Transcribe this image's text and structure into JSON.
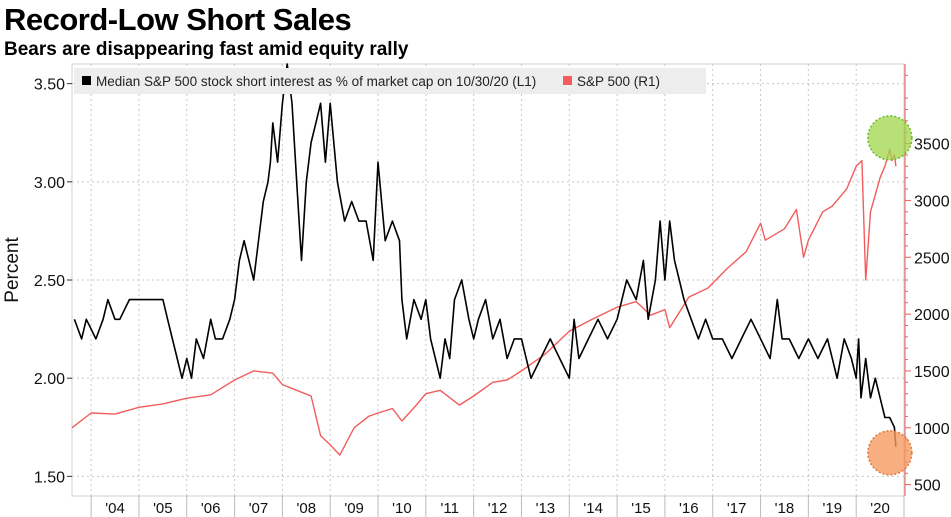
{
  "title": "Record-Low Short Sales",
  "subtitle": "Bears are disappearing fast amid equity rally",
  "colors": {
    "short_interest": "#000000",
    "sp500": "#f25c5c",
    "highlight_high": "#9fd64a",
    "highlight_low": "#f59a62",
    "grid": "#c8c8c8"
  },
  "chart_data": {
    "type": "line",
    "ylabel": "Percent",
    "grid": true,
    "legend_position": "top-left",
    "y_left_lim": [
      1.4,
      3.6
    ],
    "y_left_ticks": [
      1.5,
      2.0,
      2.5,
      3.0,
      3.5
    ],
    "y_left_tick_labels": [
      "1.50",
      "2.00",
      "2.50",
      "3.00",
      "3.50"
    ],
    "y_right_lim": [
      400,
      4200
    ],
    "y_right_ticks": [
      500,
      1000,
      1500,
      2000,
      2500,
      3000,
      3500
    ],
    "y_right_tick_labels": [
      "500",
      "1000",
      "1500",
      "2000",
      "2500",
      "3000",
      "3500"
    ],
    "x_lim": [
      2003.6,
      2021.0
    ],
    "x_ticks": [
      2004,
      2005,
      2006,
      2007,
      2008,
      2009,
      2010,
      2011,
      2012,
      2013,
      2014,
      2015,
      2016,
      2017,
      2018,
      2019,
      2020
    ],
    "x_tick_labels": [
      "'04",
      "'05",
      "'06",
      "'07",
      "'08",
      "'09",
      "'10",
      "'11",
      "'12",
      "'13",
      "'14",
      "'15",
      "'16",
      "'17",
      "'18",
      "'19",
      "'20"
    ],
    "series": [
      {
        "name": "Median S&P 500 stock short interest as % of market cap on 10/30/20 (L1)",
        "axis": "left",
        "x": [
          2003.65,
          2003.8,
          2003.9,
          2004.1,
          2004.25,
          2004.35,
          2004.5,
          2004.6,
          2004.8,
          2005.0,
          2005.2,
          2005.5,
          2005.6,
          2005.8,
          2005.9,
          2006.0,
          2006.1,
          2006.2,
          2006.35,
          2006.5,
          2006.6,
          2006.75,
          2006.9,
          2007.0,
          2007.1,
          2007.2,
          2007.3,
          2007.4,
          2007.5,
          2007.6,
          2007.7,
          2007.75,
          2007.8,
          2007.9,
          2008.0,
          2008.1,
          2008.2,
          2008.3,
          2008.4,
          2008.5,
          2008.6,
          2008.7,
          2008.8,
          2008.9,
          2009.0,
          2009.15,
          2009.3,
          2009.45,
          2009.6,
          2009.75,
          2009.9,
          2010.0,
          2010.15,
          2010.3,
          2010.45,
          2010.5,
          2010.6,
          2010.75,
          2010.9,
          2011.0,
          2011.1,
          2011.2,
          2011.3,
          2011.4,
          2011.5,
          2011.6,
          2011.75,
          2011.9,
          2012.0,
          2012.1,
          2012.25,
          2012.4,
          2012.55,
          2012.7,
          2012.85,
          2013.0,
          2013.2,
          2013.4,
          2013.6,
          2013.8,
          2014.0,
          2014.1,
          2014.2,
          2014.4,
          2014.6,
          2014.8,
          2015.0,
          2015.2,
          2015.4,
          2015.55,
          2015.65,
          2015.8,
          2015.9,
          2016.0,
          2016.1,
          2016.2,
          2016.3,
          2016.4,
          2016.55,
          2016.7,
          2016.85,
          2017.0,
          2017.2,
          2017.4,
          2017.6,
          2017.8,
          2018.0,
          2018.2,
          2018.35,
          2018.45,
          2018.6,
          2018.8,
          2019.0,
          2019.2,
          2019.4,
          2019.6,
          2019.75,
          2019.9,
          2020.0,
          2020.05,
          2020.1,
          2020.2,
          2020.3,
          2020.4,
          2020.5,
          2020.6,
          2020.7,
          2020.8,
          2020.83
        ],
        "values": [
          2.3,
          2.2,
          2.3,
          2.2,
          2.3,
          2.4,
          2.3,
          2.3,
          2.4,
          2.4,
          2.4,
          2.4,
          2.3,
          2.1,
          2.0,
          2.1,
          2.0,
          2.2,
          2.1,
          2.3,
          2.2,
          2.2,
          2.3,
          2.4,
          2.6,
          2.7,
          2.6,
          2.5,
          2.7,
          2.9,
          3.0,
          3.1,
          3.3,
          3.1,
          3.4,
          3.6,
          3.4,
          3.0,
          2.6,
          3.0,
          3.2,
          3.3,
          3.4,
          3.1,
          3.4,
          3.0,
          2.8,
          2.9,
          2.8,
          2.8,
          2.6,
          3.1,
          2.7,
          2.8,
          2.7,
          2.4,
          2.2,
          2.4,
          2.3,
          2.4,
          2.2,
          2.1,
          2.0,
          2.2,
          2.1,
          2.4,
          2.5,
          2.3,
          2.2,
          2.3,
          2.4,
          2.2,
          2.3,
          2.1,
          2.2,
          2.2,
          2.0,
          2.1,
          2.2,
          2.1,
          2.0,
          2.3,
          2.1,
          2.2,
          2.3,
          2.2,
          2.3,
          2.5,
          2.4,
          2.6,
          2.3,
          2.5,
          2.8,
          2.5,
          2.8,
          2.6,
          2.5,
          2.4,
          2.3,
          2.2,
          2.3,
          2.2,
          2.2,
          2.1,
          2.2,
          2.3,
          2.2,
          2.1,
          2.4,
          2.2,
          2.2,
          2.1,
          2.2,
          2.1,
          2.2,
          2.0,
          2.2,
          2.1,
          2.0,
          2.2,
          1.9,
          2.1,
          1.9,
          2.0,
          1.9,
          1.8,
          1.8,
          1.75,
          1.65
        ]
      },
      {
        "name": "S&P 500  (R1)",
        "axis": "right",
        "x": [
          2003.6,
          2004.0,
          2004.5,
          2005.0,
          2005.5,
          2006.0,
          2006.5,
          2007.0,
          2007.4,
          2007.8,
          2008.0,
          2008.3,
          2008.6,
          2008.8,
          2009.0,
          2009.2,
          2009.5,
          2009.8,
          2010.0,
          2010.3,
          2010.5,
          2010.8,
          2011.0,
          2011.3,
          2011.7,
          2012.0,
          2012.4,
          2012.7,
          2013.0,
          2013.5,
          2014.0,
          2014.5,
          2015.0,
          2015.4,
          2015.7,
          2016.0,
          2016.1,
          2016.5,
          2016.9,
          2017.3,
          2017.7,
          2018.0,
          2018.1,
          2018.5,
          2018.75,
          2018.9,
          2019.0,
          2019.3,
          2019.5,
          2019.8,
          2020.0,
          2020.12,
          2020.2,
          2020.3,
          2020.5,
          2020.6,
          2020.7,
          2020.75,
          2020.8,
          2020.83
        ],
        "values": [
          1000,
          1130,
          1120,
          1180,
          1210,
          1260,
          1290,
          1420,
          1500,
          1480,
          1380,
          1330,
          1280,
          930,
          850,
          760,
          1000,
          1100,
          1130,
          1170,
          1060,
          1200,
          1300,
          1330,
          1200,
          1280,
          1400,
          1420,
          1500,
          1650,
          1850,
          1960,
          2060,
          2110,
          1990,
          2040,
          1880,
          2150,
          2230,
          2400,
          2550,
          2800,
          2650,
          2750,
          2920,
          2500,
          2650,
          2900,
          2950,
          3100,
          3300,
          3350,
          2300,
          2900,
          3200,
          3300,
          3450,
          3350,
          3400,
          3300
        ]
      }
    ]
  }
}
